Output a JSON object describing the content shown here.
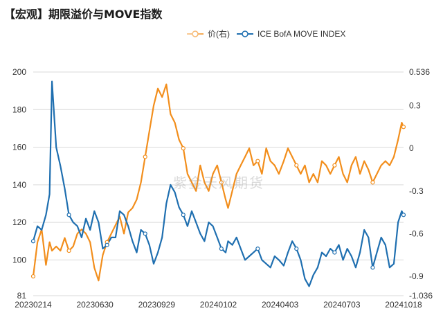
{
  "title": "【宏观】期限溢价与MOVE指数",
  "legend": [
    {
      "label": "价(右)",
      "color": "#f28e1c",
      "partial": true
    },
    {
      "label": "ICE BofA MOVE INDEX",
      "color": "#1f6fb0"
    }
  ],
  "watermark": "紫金天风期货",
  "chart_data": {
    "type": "line",
    "x_tick_labels": [
      "20230214",
      "20230630",
      "20230929",
      "20240102",
      "20240403",
      "20240703",
      "20241018"
    ],
    "y_left": {
      "ticks": [
        81,
        100,
        120,
        140,
        160,
        180,
        200
      ],
      "range": [
        81,
        200
      ]
    },
    "y_right": {
      "ticks": [
        "-1.036",
        "-0.9",
        "-0.6",
        "-0.3",
        "0",
        "0.3",
        "0.536"
      ],
      "range": [
        -1.036,
        0.536
      ]
    },
    "grid": true,
    "series": [
      {
        "name": "ICE BofA MOVE INDEX",
        "axis": "left",
        "color": "#1f6fb0",
        "x": [
          "2023-02-14",
          "2023-02-21",
          "2023-02-28",
          "2023-03-07",
          "2023-03-13",
          "2023-03-17",
          "2023-03-24",
          "2023-03-31",
          "2023-04-07",
          "2023-04-14",
          "2023-04-21",
          "2023-04-28",
          "2023-05-05",
          "2023-05-12",
          "2023-05-19",
          "2023-05-26",
          "2023-06-02",
          "2023-06-09",
          "2023-06-16",
          "2023-06-23",
          "2023-06-30",
          "2023-07-07",
          "2023-07-14",
          "2023-07-21",
          "2023-07-28",
          "2023-08-04",
          "2023-08-11",
          "2023-08-18",
          "2023-08-25",
          "2023-09-01",
          "2023-09-08",
          "2023-09-15",
          "2023-09-22",
          "2023-09-29",
          "2023-10-06",
          "2023-10-13",
          "2023-10-20",
          "2023-10-27",
          "2023-11-03",
          "2023-11-10",
          "2023-11-17",
          "2023-11-24",
          "2023-12-01",
          "2023-12-08",
          "2023-12-15",
          "2023-12-22",
          "2023-12-29",
          "2024-01-02",
          "2024-01-09",
          "2024-01-16",
          "2024-01-23",
          "2024-01-30",
          "2024-02-06",
          "2024-02-13",
          "2024-02-20",
          "2024-02-27",
          "2024-03-05",
          "2024-03-12",
          "2024-03-19",
          "2024-03-26",
          "2024-04-03",
          "2024-04-10",
          "2024-04-17",
          "2024-04-24",
          "2024-05-01",
          "2024-05-08",
          "2024-05-15",
          "2024-05-22",
          "2024-05-29",
          "2024-06-05",
          "2024-06-12",
          "2024-06-19",
          "2024-06-26",
          "2024-07-03",
          "2024-07-10",
          "2024-07-17",
          "2024-07-24",
          "2024-07-31",
          "2024-08-07",
          "2024-08-14",
          "2024-08-21",
          "2024-08-28",
          "2024-09-04",
          "2024-09-11",
          "2024-09-18",
          "2024-09-25",
          "2024-10-02",
          "2024-10-09",
          "2024-10-15",
          "2024-10-18"
        ],
        "values": [
          110,
          118,
          116,
          124,
          135,
          195,
          160,
          150,
          138,
          124,
          120,
          118,
          112,
          122,
          116,
          126,
          120,
          106,
          108,
          112,
          112,
          126,
          124,
          118,
          110,
          104,
          116,
          114,
          108,
          98,
          104,
          112,
          130,
          140,
          136,
          128,
          124,
          118,
          126,
          120,
          114,
          110,
          120,
          118,
          112,
          106,
          104,
          110,
          108,
          112,
          106,
          100,
          102,
          104,
          106,
          100,
          98,
          96,
          102,
          100,
          97,
          104,
          110,
          106,
          100,
          90,
          86,
          92,
          96,
          104,
          102,
          106,
          104,
          108,
          100,
          106,
          102,
          96,
          104,
          116,
          112,
          96,
          104,
          112,
          108,
          96,
          98,
          120,
          126,
          124
        ]
      },
      {
        "name": "价(右)",
        "axis": "right",
        "color": "#f28e1c",
        "x": [
          "2023-02-14",
          "2023-02-21",
          "2023-02-28",
          "2023-03-07",
          "2023-03-13",
          "2023-03-17",
          "2023-03-24",
          "2023-03-31",
          "2023-04-07",
          "2023-04-14",
          "2023-04-21",
          "2023-04-28",
          "2023-05-05",
          "2023-05-12",
          "2023-05-19",
          "2023-05-26",
          "2023-06-02",
          "2023-06-09",
          "2023-06-16",
          "2023-06-23",
          "2023-06-30",
          "2023-07-07",
          "2023-07-14",
          "2023-07-21",
          "2023-07-28",
          "2023-08-04",
          "2023-08-11",
          "2023-08-18",
          "2023-08-25",
          "2023-09-01",
          "2023-09-08",
          "2023-09-15",
          "2023-09-22",
          "2023-09-29",
          "2023-10-06",
          "2023-10-13",
          "2023-10-20",
          "2023-10-27",
          "2023-11-03",
          "2023-11-10",
          "2023-11-17",
          "2023-11-24",
          "2023-12-01",
          "2023-12-08",
          "2023-12-15",
          "2023-12-22",
          "2023-12-29",
          "2024-01-02",
          "2024-01-09",
          "2024-01-16",
          "2024-01-23",
          "2024-01-30",
          "2024-02-06",
          "2024-02-13",
          "2024-02-20",
          "2024-02-27",
          "2024-03-05",
          "2024-03-12",
          "2024-03-19",
          "2024-03-26",
          "2024-04-03",
          "2024-04-10",
          "2024-04-17",
          "2024-04-24",
          "2024-05-01",
          "2024-05-08",
          "2024-05-15",
          "2024-05-22",
          "2024-05-29",
          "2024-06-05",
          "2024-06-12",
          "2024-06-19",
          "2024-06-26",
          "2024-07-03",
          "2024-07-10",
          "2024-07-17",
          "2024-07-24",
          "2024-07-31",
          "2024-08-07",
          "2024-08-14",
          "2024-08-21",
          "2024-08-28",
          "2024-09-04",
          "2024-09-11",
          "2024-09-18",
          "2024-09-25",
          "2024-10-02",
          "2024-10-09",
          "2024-10-15",
          "2024-10-18"
        ],
        "values": [
          -0.9,
          -0.66,
          -0.57,
          -0.82,
          -0.66,
          -0.72,
          -0.69,
          -0.72,
          -0.63,
          -0.72,
          -0.69,
          -0.6,
          -0.57,
          -0.6,
          -0.66,
          -0.84,
          -0.93,
          -0.75,
          -0.66,
          -0.6,
          -0.54,
          -0.48,
          -0.6,
          -0.45,
          -0.42,
          -0.36,
          -0.24,
          -0.06,
          0.12,
          0.3,
          0.42,
          0.36,
          0.45,
          0.24,
          0.18,
          0.06,
          0.0,
          -0.18,
          -0.24,
          -0.3,
          -0.12,
          -0.24,
          -0.3,
          -0.18,
          -0.12,
          -0.24,
          -0.36,
          -0.42,
          -0.3,
          -0.18,
          -0.12,
          -0.06,
          0.0,
          -0.12,
          -0.09,
          -0.18,
          0.0,
          -0.09,
          -0.12,
          -0.18,
          -0.09,
          0.0,
          -0.06,
          -0.12,
          -0.18,
          -0.12,
          -0.24,
          -0.18,
          -0.24,
          -0.09,
          -0.12,
          -0.18,
          -0.12,
          -0.06,
          -0.18,
          -0.24,
          -0.12,
          -0.06,
          -0.18,
          -0.09,
          -0.15,
          -0.24,
          -0.18,
          -0.12,
          -0.09,
          -0.12,
          -0.06,
          0.06,
          0.18,
          0.15
        ]
      }
    ]
  }
}
